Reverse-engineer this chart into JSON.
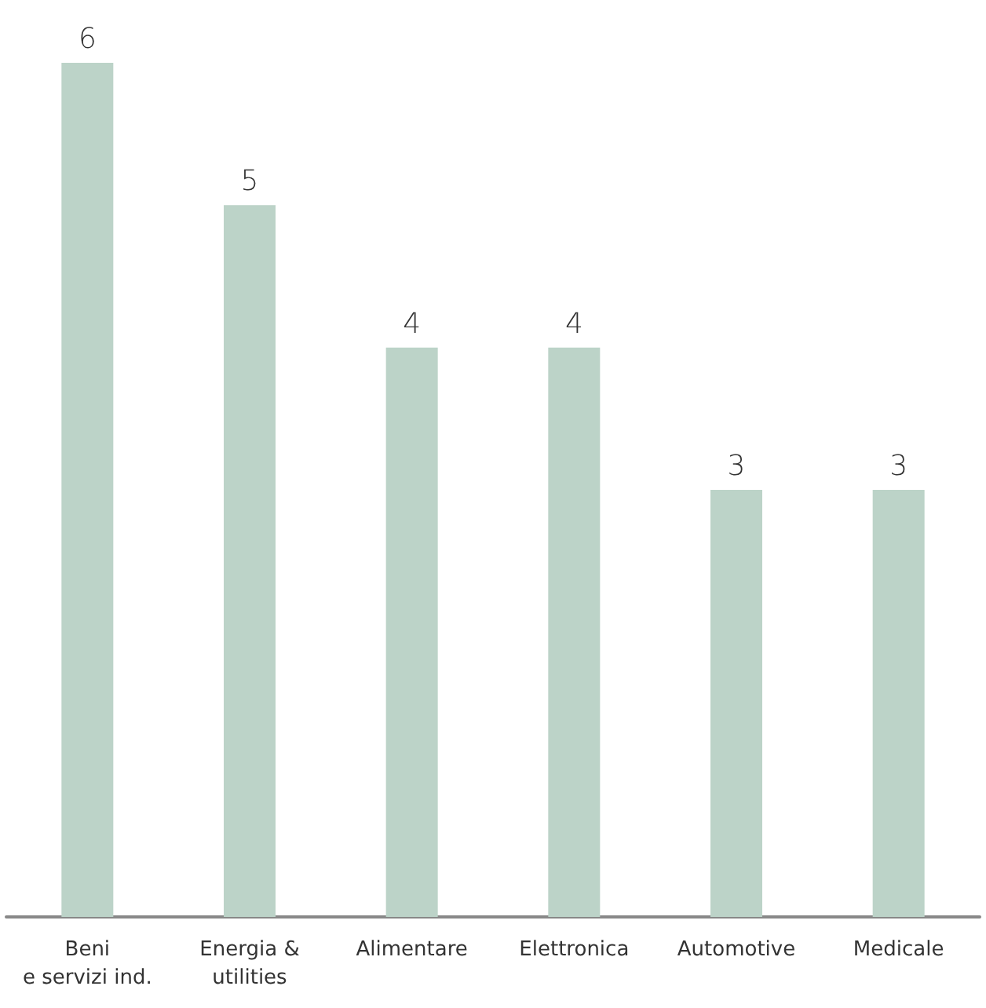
{
  "chart_data": {
    "type": "bar",
    "categories": [
      "Beni\ne servizi ind.",
      "Energia &\nutilities",
      "Alimentare",
      "Elettronica",
      "Automotive",
      "Medicale"
    ],
    "values": [
      6,
      5,
      4,
      4,
      3,
      3
    ],
    "color": "#bcd3c8",
    "data_labels": true
  }
}
